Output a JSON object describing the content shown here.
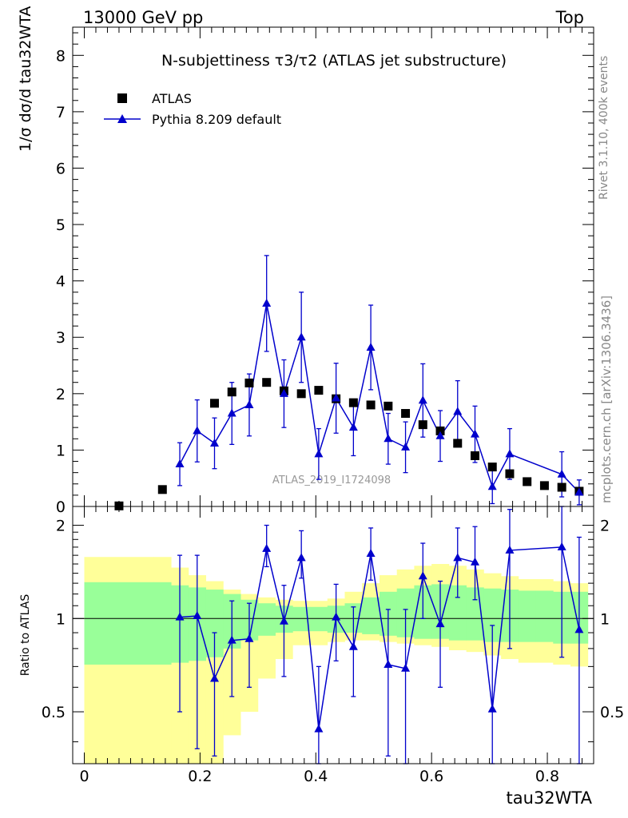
{
  "header": {
    "energy_label": "13000 GeV pp",
    "process_label": "Top"
  },
  "side_labels": {
    "rivet": "Rivet 3.1.10,  400k events",
    "mcplots": "mcplots.cern.ch [arXiv:1306.3436]"
  },
  "colors": {
    "mc_line": "#0000cc",
    "data_marker": "#000000",
    "band_outer": "#ffff99",
    "band_inner": "#99ff99"
  },
  "chart_data": [
    {
      "type": "scatter",
      "title": "N-subjettiness τ3/τ2 (ATLAS jet substructure)",
      "ylabel": "1/σ dσ/d tau32WTA",
      "xlabel": "tau32WTA",
      "watermark": "ATLAS_2019_I1724098",
      "xlim": [
        -0.02,
        0.88
      ],
      "ylim": [
        0,
        8.5
      ],
      "yticks": [
        0,
        1,
        2,
        3,
        4,
        5,
        6,
        7,
        8
      ],
      "legend": {
        "placement": "top-left",
        "entries": [
          "ATLAS",
          "Pythia 8.209 default"
        ]
      },
      "series": [
        {
          "name": "ATLAS",
          "marker": "square",
          "x": [
            0.06,
            0.135,
            0.225,
            0.255,
            0.285,
            0.315,
            0.345,
            0.375,
            0.405,
            0.435,
            0.465,
            0.495,
            0.525,
            0.555,
            0.585,
            0.615,
            0.645,
            0.675,
            0.705,
            0.735,
            0.765,
            0.795,
            0.825,
            0.855
          ],
          "values": [
            0.01,
            0.3,
            1.83,
            2.03,
            2.19,
            2.2,
            2.05,
            2.0,
            2.06,
            1.91,
            1.84,
            1.8,
            1.78,
            1.65,
            1.45,
            1.34,
            1.12,
            0.9,
            0.7,
            0.58,
            0.44,
            0.37,
            0.34,
            0.27
          ]
        },
        {
          "name": "Pythia 8.209 default",
          "marker": "triangle",
          "x": [
            0.165,
            0.195,
            0.225,
            0.255,
            0.285,
            0.315,
            0.345,
            0.375,
            0.405,
            0.435,
            0.465,
            0.495,
            0.525,
            0.555,
            0.585,
            0.615,
            0.645,
            0.675,
            0.705,
            0.735,
            0.825,
            0.855
          ],
          "values": [
            0.75,
            1.34,
            1.12,
            1.65,
            1.8,
            3.6,
            2.0,
            3.0,
            0.93,
            1.92,
            1.4,
            2.82,
            1.2,
            1.05,
            1.88,
            1.25,
            1.68,
            1.28,
            0.35,
            0.93,
            0.57,
            0.25
          ],
          "err": [
            0.38,
            0.55,
            0.45,
            0.55,
            0.55,
            0.85,
            0.6,
            0.8,
            0.45,
            0.62,
            0.5,
            0.75,
            0.45,
            0.45,
            0.65,
            0.45,
            0.55,
            0.5,
            0.3,
            0.45,
            0.4,
            0.22
          ]
        }
      ]
    },
    {
      "type": "scatter",
      "ylabel": "Ratio to ATLAS",
      "xlabel": "tau32WTA",
      "yscale": "log",
      "xlim": [
        -0.02,
        0.88
      ],
      "ylim": [
        0.34,
        2.3
      ],
      "yticks": [
        0.5,
        1,
        2
      ],
      "ytick_labels": [
        "0.5",
        "1",
        "2"
      ],
      "xticks": [
        0,
        0.2,
        0.4,
        0.6,
        0.8
      ],
      "xtick_labels": [
        "0",
        "0.2",
        "0.4",
        "0.6",
        "0.8"
      ],
      "reference_line": 1,
      "bands": {
        "edges": [
          0.0,
          0.12,
          0.15,
          0.18,
          0.21,
          0.24,
          0.27,
          0.3,
          0.33,
          0.36,
          0.39,
          0.42,
          0.45,
          0.48,
          0.51,
          0.54,
          0.57,
          0.6,
          0.63,
          0.66,
          0.69,
          0.72,
          0.75,
          0.78,
          0.81,
          0.84,
          0.87
        ],
        "outer_lo": [
          0.3,
          0.3,
          0.3,
          0.3,
          0.3,
          0.42,
          0.5,
          0.64,
          0.74,
          0.82,
          0.82,
          0.84,
          0.85,
          0.85,
          0.84,
          0.83,
          0.82,
          0.81,
          0.79,
          0.78,
          0.76,
          0.74,
          0.72,
          0.72,
          0.71,
          0.7
        ],
        "outer_hi": [
          1.58,
          1.58,
          1.46,
          1.38,
          1.32,
          1.24,
          1.2,
          1.17,
          1.15,
          1.14,
          1.14,
          1.16,
          1.22,
          1.3,
          1.38,
          1.44,
          1.48,
          1.5,
          1.48,
          1.44,
          1.4,
          1.37,
          1.34,
          1.34,
          1.32,
          1.3
        ],
        "inner_lo": [
          0.71,
          0.71,
          0.72,
          0.73,
          0.75,
          0.8,
          0.85,
          0.88,
          0.9,
          0.91,
          0.91,
          0.9,
          0.9,
          0.89,
          0.88,
          0.87,
          0.86,
          0.86,
          0.85,
          0.85,
          0.84,
          0.84,
          0.84,
          0.84,
          0.83,
          0.83
        ],
        "inner_hi": [
          1.31,
          1.31,
          1.28,
          1.26,
          1.24,
          1.2,
          1.15,
          1.12,
          1.1,
          1.09,
          1.09,
          1.1,
          1.12,
          1.17,
          1.22,
          1.25,
          1.28,
          1.29,
          1.28,
          1.26,
          1.25,
          1.24,
          1.23,
          1.23,
          1.22,
          1.22
        ]
      },
      "series": [
        {
          "name": "Pythia 8.209 default / ATLAS",
          "marker": "triangle",
          "x": [
            0.165,
            0.195,
            0.225,
            0.255,
            0.285,
            0.315,
            0.345,
            0.375,
            0.405,
            0.435,
            0.465,
            0.495,
            0.525,
            0.555,
            0.585,
            0.615,
            0.645,
            0.675,
            0.705,
            0.735,
            0.825,
            0.855
          ],
          "values": [
            1.01,
            1.02,
            0.64,
            0.85,
            0.86,
            1.68,
            0.98,
            1.57,
            0.44,
            1.01,
            0.81,
            1.62,
            0.71,
            0.69,
            1.37,
            0.96,
            1.57,
            1.52,
            0.51,
            1.66,
            1.7,
            0.92
          ],
          "lo": [
            0.5,
            0.38,
            0.36,
            0.56,
            0.6,
            1.47,
            0.65,
            1.35,
            0.33,
            0.73,
            0.56,
            1.33,
            0.36,
            0.34,
            1.0,
            0.6,
            1.17,
            1.15,
            0.2,
            0.8,
            0.75,
            0.25
          ],
          "hi": [
            1.6,
            1.6,
            0.9,
            1.14,
            1.12,
            2.0,
            1.28,
            1.92,
            0.7,
            1.29,
            1.09,
            1.96,
            1.07,
            1.07,
            1.75,
            1.32,
            1.96,
            1.98,
            0.95,
            2.25,
            2.4,
            1.83
          ]
        }
      ]
    }
  ]
}
